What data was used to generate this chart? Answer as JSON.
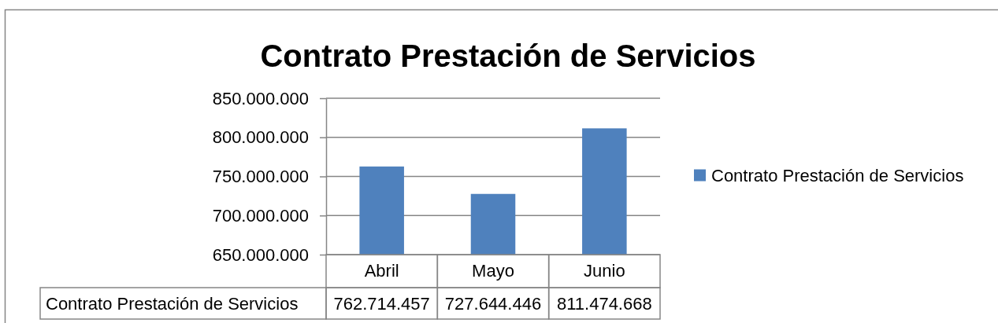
{
  "chart_data": {
    "type": "bar",
    "title": "Contrato Prestación de Servicios",
    "categories": [
      "Abril",
      "Mayo",
      "Junio"
    ],
    "series": [
      {
        "name": "Contrato Prestación de Servicios",
        "color": "#4f81bd",
        "values": [
          762714457,
          727644446,
          811474668
        ],
        "value_labels": [
          "762.714.457",
          "727.644.446",
          "811.474.668"
        ]
      }
    ],
    "ylim": [
      650000000,
      850000000
    ],
    "yticks": [
      {
        "value": 650000000,
        "label": "650.000.000"
      },
      {
        "value": 700000000,
        "label": "700.000.000"
      },
      {
        "value": 750000000,
        "label": "750.000.000"
      },
      {
        "value": 800000000,
        "label": "800.000.000"
      },
      {
        "value": 850000000,
        "label": "850.000.000"
      }
    ],
    "grid": "y",
    "legend": "right"
  }
}
